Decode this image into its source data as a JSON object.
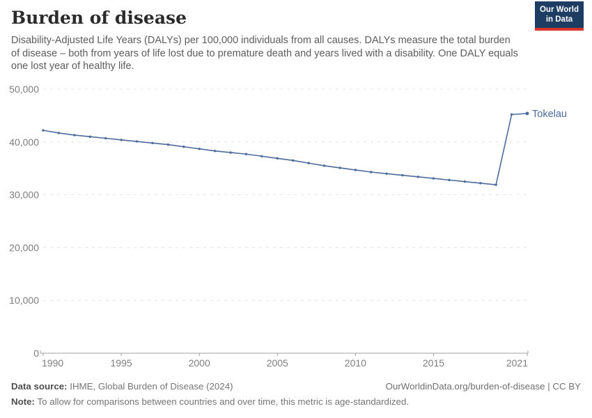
{
  "header": {
    "title": "Burden of disease",
    "subtitle": "Disability-Adjusted Life Years (DALYs) per 100,000 individuals from all causes. DALYs measure the total burden of disease – both from years of life lost due to premature death and years lived with a disability. One DALY equals one lost year of healthy life.",
    "logo": {
      "line1": "Our World",
      "line2": "in Data",
      "bg_color": "#1d3d63",
      "stripe_color": "#d8362a"
    }
  },
  "chart_data": {
    "type": "line",
    "title": "Burden of disease",
    "xlabel": "",
    "ylabel": "",
    "x": [
      1990,
      1991,
      1992,
      1993,
      1994,
      1995,
      1996,
      1997,
      1998,
      1999,
      2000,
      2001,
      2002,
      2003,
      2004,
      2005,
      2006,
      2007,
      2008,
      2009,
      2010,
      2011,
      2012,
      2013,
      2014,
      2015,
      2016,
      2017,
      2018,
      2019,
      2020,
      2021
    ],
    "series": [
      {
        "name": "Tokelau",
        "color": "#4c6a9c",
        "values": [
          42200,
          41700,
          41300,
          41000,
          40700,
          40400,
          40100,
          39800,
          39500,
          39100,
          38700,
          38300,
          38000,
          37700,
          37300,
          36900,
          36500,
          36000,
          35500,
          35100,
          34700,
          34300,
          34000,
          33700,
          33400,
          33100,
          32800,
          32500,
          32200,
          31900,
          45200,
          45400
        ]
      }
    ],
    "xlim": [
      1990,
      2021
    ],
    "ylim": [
      0,
      50000
    ],
    "x_ticks": [
      1990,
      1995,
      2000,
      2005,
      2010,
      2015,
      2021
    ],
    "y_ticks": [
      0,
      10000,
      20000,
      30000,
      40000,
      50000
    ],
    "y_tick_labels": [
      "0",
      "10,000",
      "20,000",
      "30,000",
      "40,000",
      "50,000"
    ],
    "grid": "horizontal-dashed",
    "legend_position": "end-of-line-label",
    "end_label": "Tokelau",
    "grid_color": "#e3e3e3",
    "axis_color": "#a0a0a0",
    "tick_label_color": "#7d7d7d"
  },
  "footer": {
    "source_label": "Data source:",
    "source_value": " IHME, Global Burden of Disease (2024)",
    "link": "OurWorldinData.org/burden-of-disease | CC BY",
    "note_label": "Note:",
    "note_value": " To allow for comparisons between countries and over time, this metric is age-standardized."
  }
}
